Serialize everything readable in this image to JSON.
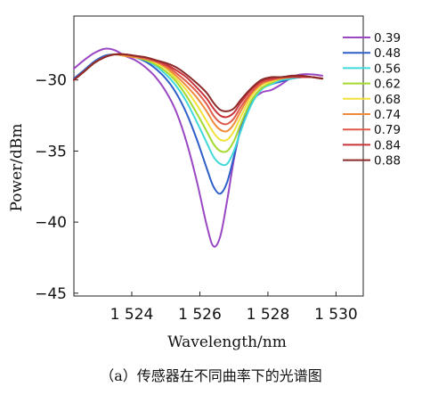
{
  "caption": "（a）传感器在不同曲率下的光谱图",
  "chart_data": {
    "type": "line",
    "xlabel": "Wavelength/nm",
    "ylabel": "Power/dBm",
    "xlim": [
      1522.3,
      1530.8
    ],
    "ylim": [
      -45.2,
      -25.5
    ],
    "xticks": [
      1524,
      1526,
      1528,
      1530
    ],
    "xtick_labels": [
      "1 524",
      "1 526",
      "1 528",
      "1 530"
    ],
    "yticks": [
      -30,
      -35,
      -40,
      -45
    ],
    "ytick_labels": [
      "−30",
      "−35",
      "−40",
      "−45"
    ],
    "legend_position": "top-right",
    "x": [
      1522.3,
      1522.6,
      1522.9,
      1523.2,
      1523.5,
      1523.8,
      1524.1,
      1524.4,
      1524.7,
      1525.0,
      1525.3,
      1525.6,
      1525.9,
      1526.2,
      1526.4,
      1526.6,
      1526.8,
      1527.0,
      1527.2,
      1527.5,
      1527.8,
      1528.1,
      1528.4,
      1528.7,
      1529.0,
      1529.3,
      1529.6
    ],
    "series": [
      {
        "name": "0.39",
        "color": "#9a47c4",
        "values": [
          -29.2,
          -28.6,
          -28.1,
          -27.8,
          -27.9,
          -28.3,
          -28.6,
          -29.1,
          -29.8,
          -30.8,
          -32.2,
          -34.3,
          -37.0,
          -40.2,
          -41.7,
          -41.0,
          -38.5,
          -35.6,
          -33.4,
          -31.6,
          -30.9,
          -30.7,
          -30.3,
          -29.8,
          -29.6,
          -29.6,
          -29.7
        ]
      },
      {
        "name": "0.48",
        "color": "#2e5fc9",
        "values": [
          -29.9,
          -29.3,
          -28.7,
          -28.3,
          -28.2,
          -28.3,
          -28.4,
          -28.7,
          -29.2,
          -29.9,
          -30.9,
          -32.3,
          -34.1,
          -36.2,
          -37.5,
          -38.0,
          -37.2,
          -35.4,
          -33.5,
          -31.6,
          -30.6,
          -30.3,
          -30.1,
          -29.9,
          -29.8,
          -29.8,
          -29.9
        ]
      },
      {
        "name": "0.56",
        "color": "#40d9d9",
        "values": [
          -30.0,
          -29.4,
          -28.8,
          -28.4,
          -28.2,
          -28.3,
          -28.4,
          -28.6,
          -29.0,
          -29.6,
          -30.4,
          -31.5,
          -32.9,
          -34.4,
          -35.4,
          -35.9,
          -35.9,
          -35.0,
          -33.6,
          -31.8,
          -30.7,
          -30.3,
          -30.0,
          -29.9,
          -29.8,
          -29.8,
          -29.9
        ]
      },
      {
        "name": "0.62",
        "color": "#a6d92e",
        "values": [
          -30.0,
          -29.4,
          -28.8,
          -28.4,
          -28.2,
          -28.3,
          -28.4,
          -28.6,
          -28.9,
          -29.4,
          -30.1,
          -31.1,
          -32.3,
          -33.6,
          -34.5,
          -35.0,
          -35.0,
          -34.3,
          -33.1,
          -31.5,
          -30.6,
          -30.2,
          -29.9,
          -29.8,
          -29.8,
          -29.8,
          -29.9
        ]
      },
      {
        "name": "0.68",
        "color": "#f2e23a",
        "values": [
          -30.0,
          -29.4,
          -28.8,
          -28.4,
          -28.2,
          -28.3,
          -28.4,
          -28.5,
          -28.8,
          -29.2,
          -29.9,
          -30.7,
          -31.7,
          -32.9,
          -33.7,
          -34.2,
          -34.2,
          -33.6,
          -32.6,
          -31.2,
          -30.4,
          -30.1,
          -29.9,
          -29.8,
          -29.8,
          -29.8,
          -29.9
        ]
      },
      {
        "name": "0.74",
        "color": "#f08a3c",
        "values": [
          -30.0,
          -29.4,
          -28.8,
          -28.4,
          -28.2,
          -28.3,
          -28.4,
          -28.5,
          -28.7,
          -29.1,
          -29.7,
          -30.4,
          -31.2,
          -32.2,
          -33.0,
          -33.5,
          -33.6,
          -33.1,
          -32.2,
          -31.0,
          -30.3,
          -30.0,
          -29.9,
          -29.8,
          -29.8,
          -29.8,
          -29.9
        ]
      },
      {
        "name": "0.79",
        "color": "#e05a4a",
        "values": [
          -30.0,
          -29.4,
          -28.8,
          -28.4,
          -28.2,
          -28.2,
          -28.3,
          -28.5,
          -28.7,
          -29.0,
          -29.5,
          -30.1,
          -30.8,
          -31.7,
          -32.5,
          -33.0,
          -33.1,
          -32.7,
          -31.9,
          -30.9,
          -30.2,
          -30.0,
          -29.8,
          -29.8,
          -29.8,
          -29.8,
          -29.9
        ]
      },
      {
        "name": "0.84",
        "color": "#c8343a",
        "values": [
          -30.0,
          -29.4,
          -28.8,
          -28.4,
          -28.2,
          -28.2,
          -28.3,
          -28.4,
          -28.6,
          -28.9,
          -29.3,
          -29.8,
          -30.5,
          -31.3,
          -32.0,
          -32.5,
          -32.6,
          -32.3,
          -31.6,
          -30.7,
          -30.1,
          -29.9,
          -29.8,
          -29.8,
          -29.8,
          -29.8,
          -29.9
        ]
      },
      {
        "name": "0.88",
        "color": "#8c2a2a",
        "values": [
          -30.0,
          -29.4,
          -28.8,
          -28.4,
          -28.2,
          -28.2,
          -28.3,
          -28.4,
          -28.6,
          -28.8,
          -29.1,
          -29.6,
          -30.2,
          -30.9,
          -31.6,
          -32.1,
          -32.2,
          -32.0,
          -31.4,
          -30.6,
          -30.0,
          -29.8,
          -29.8,
          -29.7,
          -29.7,
          -29.8,
          -29.9
        ]
      }
    ]
  }
}
